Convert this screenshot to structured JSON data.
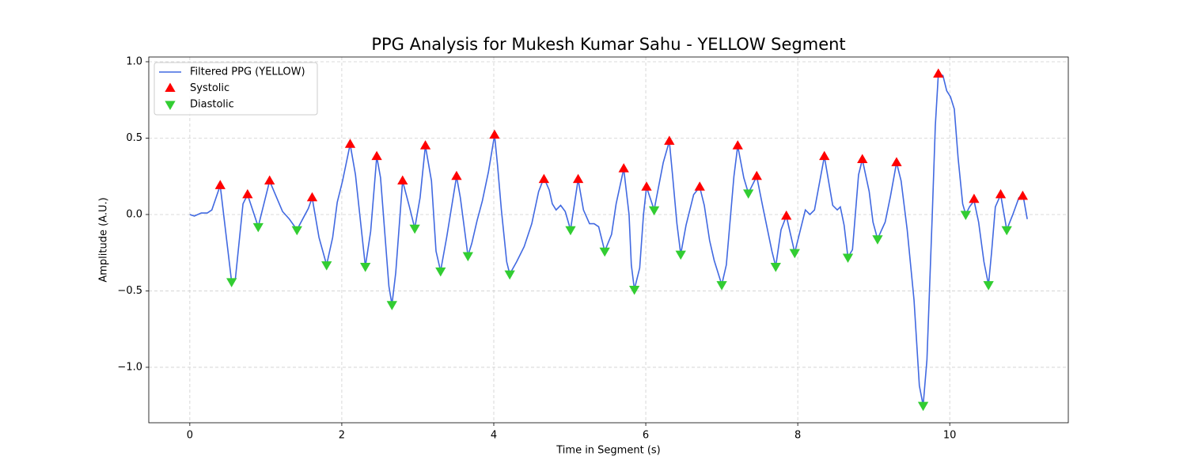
{
  "chart_data": {
    "type": "line",
    "title": "PPG Analysis for Mukesh Kumar Sahu - YELLOW Segment",
    "x_label": "Time in Segment (s)",
    "y_label": "Amplitude (A.U.)",
    "xlim": [
      -0.54,
      11.56
    ],
    "ylim": [
      -1.363,
      1.031
    ],
    "xticks": [
      0,
      2,
      4,
      6,
      8,
      10
    ],
    "yticks": [
      {
        "value": -1.0,
        "label": "−1.0"
      },
      {
        "value": -0.5,
        "label": "−0.5"
      },
      {
        "value": 0.0,
        "label": "0.0"
      },
      {
        "value": 0.5,
        "label": "0.5"
      },
      {
        "value": 1.0,
        "label": "1.0"
      }
    ],
    "grid": true,
    "legend": "upper left",
    "series": [
      {
        "name": "Filtered PPG (YELLOW)",
        "color": "#4169e1",
        "type": "line",
        "x": [
          0,
          0.06,
          0.15,
          0.23,
          0.29,
          0.4,
          0.55,
          0.6,
          0.7,
          0.76,
          0.9,
          1.05,
          1.22,
          1.31,
          1.41,
          1.56,
          1.61,
          1.7,
          1.8,
          1.88,
          1.94,
          2.01,
          2.11,
          2.18,
          2.31,
          2.38,
          2.46,
          2.51,
          2.62,
          2.66,
          2.71,
          2.8,
          2.89,
          2.96,
          3.03,
          3.1,
          3.18,
          3.24,
          3.3,
          3.38,
          3.51,
          3.56,
          3.66,
          3.71,
          3.78,
          3.85,
          3.93,
          4.01,
          4.05,
          4.1,
          4.17,
          4.21,
          4.3,
          4.4,
          4.5,
          4.59,
          4.66,
          4.73,
          4.77,
          4.82,
          4.88,
          4.94,
          5.01,
          5.11,
          5.18,
          5.26,
          5.32,
          5.38,
          5.46,
          5.55,
          5.61,
          5.71,
          5.78,
          5.81,
          5.85,
          5.92,
          5.97,
          6.01,
          6.11,
          6.23,
          6.31,
          6.35,
          6.41,
          6.46,
          6.53,
          6.63,
          6.71,
          6.77,
          6.84,
          6.9,
          7.0,
          7.06,
          7.16,
          7.21,
          7.29,
          7.35,
          7.46,
          7.54,
          7.66,
          7.71,
          7.78,
          7.85,
          7.96,
          8.04,
          8.1,
          8.16,
          8.22,
          8.35,
          8.46,
          8.52,
          8.56,
          8.61,
          8.66,
          8.72,
          8.8,
          8.85,
          8.94,
          8.99,
          9.05,
          9.15,
          9.22,
          9.3,
          9.36,
          9.44,
          9.53,
          9.6,
          9.65,
          9.7,
          9.77,
          9.81,
          9.85,
          9.91,
          9.96,
          10.01,
          10.06,
          10.11,
          10.17,
          10.21,
          10.26,
          10.32,
          10.38,
          10.45,
          10.51,
          10.55,
          10.6,
          10.67,
          10.75,
          10.83,
          10.91,
          10.97,
          11.02
        ],
        "values": [
          0,
          -0.01,
          0.01,
          0.01,
          0.03,
          0.19,
          -0.44,
          -0.42,
          0.07,
          0.13,
          -0.08,
          0.22,
          0.02,
          -0.03,
          -0.1,
          0.04,
          0.11,
          -0.15,
          -0.33,
          -0.15,
          0.08,
          0.22,
          0.46,
          0.26,
          -0.34,
          -0.11,
          0.38,
          0.24,
          -0.47,
          -0.59,
          -0.38,
          0.22,
          0.05,
          -0.09,
          0.11,
          0.45,
          0.22,
          -0.24,
          -0.37,
          -0.15,
          0.25,
          0.11,
          -0.27,
          -0.19,
          -0.04,
          0.09,
          0.28,
          0.52,
          0.32,
          0.03,
          -0.31,
          -0.39,
          -0.31,
          -0.21,
          -0.06,
          0.15,
          0.24,
          0.16,
          0.07,
          0.03,
          0.06,
          0.02,
          -0.1,
          0.23,
          0.03,
          -0.06,
          -0.06,
          -0.08,
          -0.24,
          -0.13,
          0.07,
          0.3,
          0.0,
          -0.33,
          -0.49,
          -0.35,
          0.0,
          0.18,
          0.03,
          0.34,
          0.48,
          0.27,
          -0.06,
          -0.26,
          -0.07,
          0.13,
          0.18,
          0.06,
          -0.17,
          -0.3,
          -0.46,
          -0.33,
          0.25,
          0.45,
          0.24,
          0.14,
          0.25,
          0.05,
          -0.24,
          -0.34,
          -0.1,
          -0.01,
          -0.25,
          -0.09,
          0.03,
          0.0,
          0.03,
          0.38,
          0.06,
          0.03,
          0.05,
          -0.07,
          -0.28,
          -0.23,
          0.26,
          0.36,
          0.15,
          -0.05,
          -0.16,
          -0.05,
          0.12,
          0.34,
          0.22,
          -0.1,
          -0.56,
          -1.12,
          -1.25,
          -0.95,
          0.0,
          0.58,
          0.92,
          0.91,
          0.81,
          0.77,
          0.69,
          0.37,
          0.07,
          0.0,
          0.05,
          0.09,
          -0.05,
          -0.31,
          -0.46,
          -0.25,
          0.05,
          0.13,
          -0.1,
          0.0,
          0.11,
          0.11,
          -0.03
        ]
      },
      {
        "name": "Systolic",
        "color": "#ff0000",
        "type": "scatter",
        "marker": "triangle-up",
        "x": [
          0.4,
          0.76,
          1.05,
          1.61,
          2.11,
          2.46,
          2.8,
          3.1,
          3.51,
          4.01,
          4.66,
          5.11,
          5.71,
          6.01,
          6.31,
          6.71,
          7.21,
          7.46,
          7.85,
          8.35,
          8.85,
          9.3,
          9.85,
          10.32,
          10.67,
          10.96
        ],
        "values": [
          0.19,
          0.13,
          0.22,
          0.11,
          0.46,
          0.38,
          0.22,
          0.45,
          0.25,
          0.52,
          0.23,
          0.23,
          0.3,
          0.18,
          0.48,
          0.18,
          0.45,
          0.25,
          -0.01,
          0.38,
          0.36,
          0.34,
          0.92,
          0.1,
          0.13,
          0.12
        ]
      },
      {
        "name": "Diastolic",
        "color": "#32cd32",
        "type": "scatter",
        "marker": "triangle-down",
        "x": [
          0.55,
          0.9,
          1.41,
          1.8,
          2.31,
          2.66,
          2.96,
          3.3,
          3.66,
          4.21,
          5.01,
          5.46,
          5.85,
          6.11,
          6.46,
          7.0,
          7.35,
          7.71,
          7.96,
          8.66,
          9.05,
          9.65,
          10.21,
          10.51,
          10.75
        ],
        "values": [
          -0.44,
          -0.08,
          -0.1,
          -0.33,
          -0.34,
          -0.59,
          -0.09,
          -0.37,
          -0.27,
          -0.39,
          -0.1,
          -0.24,
          -0.49,
          0.03,
          -0.26,
          -0.46,
          0.14,
          -0.34,
          -0.25,
          -0.28,
          -0.16,
          -1.25,
          0.0,
          -0.46,
          -0.1
        ]
      }
    ]
  }
}
